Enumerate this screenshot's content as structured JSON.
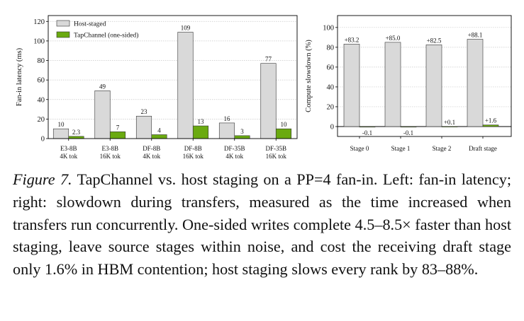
{
  "chart_data": [
    {
      "type": "bar",
      "categories": [
        [
          "E3-8B",
          "4K tok"
        ],
        [
          "E3-8B",
          "16K tok"
        ],
        [
          "DF-8B",
          "4K tok"
        ],
        [
          "DF-8B",
          "16K tok"
        ],
        [
          "DF-35B",
          "4K tok"
        ],
        [
          "DF-35B",
          "16K tok"
        ]
      ],
      "series": [
        {
          "name": "Host-staged",
          "values": [
            10,
            49,
            23,
            109,
            16,
            77
          ],
          "labels": [
            "10",
            "49",
            "23",
            "109",
            "16",
            "77"
          ],
          "color": "#d9d9d9"
        },
        {
          "name": "TapChannel (one-sided)",
          "values": [
            2.3,
            7,
            4,
            13,
            3,
            10
          ],
          "labels": [
            "2.3",
            "7",
            "4",
            "13",
            "3",
            "10"
          ],
          "color": "#6aaa10"
        }
      ],
      "ylabel": "Fan-in latency (ms)",
      "ylim": [
        0,
        126
      ],
      "yticks": [
        0,
        20,
        40,
        60,
        80,
        100,
        120
      ],
      "grid": true,
      "legend": "top-left"
    },
    {
      "type": "bar",
      "categories": [
        [
          "Stage 0"
        ],
        [
          "Stage 1"
        ],
        [
          "Stage 2"
        ],
        [
          "Draft stage"
        ]
      ],
      "series": [
        {
          "name": "Host-staged",
          "values": [
            83.2,
            85.0,
            82.5,
            88.1
          ],
          "labels": [
            "+83.2",
            "+85.0",
            "+82.5",
            "+88.1"
          ],
          "color": "#d9d9d9"
        },
        {
          "name": "TapChannel (one-sided)",
          "values": [
            -0.1,
            -0.1,
            0.1,
            1.6
          ],
          "labels": [
            "-0.1",
            "-0.1",
            "+0.1",
            "+1.6"
          ],
          "color": "#6aaa10"
        }
      ],
      "ylabel": "Compute slowdown (%)",
      "ylim": [
        -10,
        112
      ],
      "yticks": [
        0,
        20,
        40,
        60,
        80,
        100
      ],
      "grid": true,
      "zero_line": true
    }
  ],
  "caption": {
    "label": "Figure 7.",
    "text": "TapChannel vs. host staging on a PP=4 fan-in. Left: fan-in latency; right: slowdown during transfers, measured as the time increased when transfers run concurrently. One-sided writes complete 4.5–8.5× faster than host staging, leave source stages within noise, and cost the receiving draft stage only 1.6% in HBM contention; host staging slows every rank by 83–88%."
  }
}
